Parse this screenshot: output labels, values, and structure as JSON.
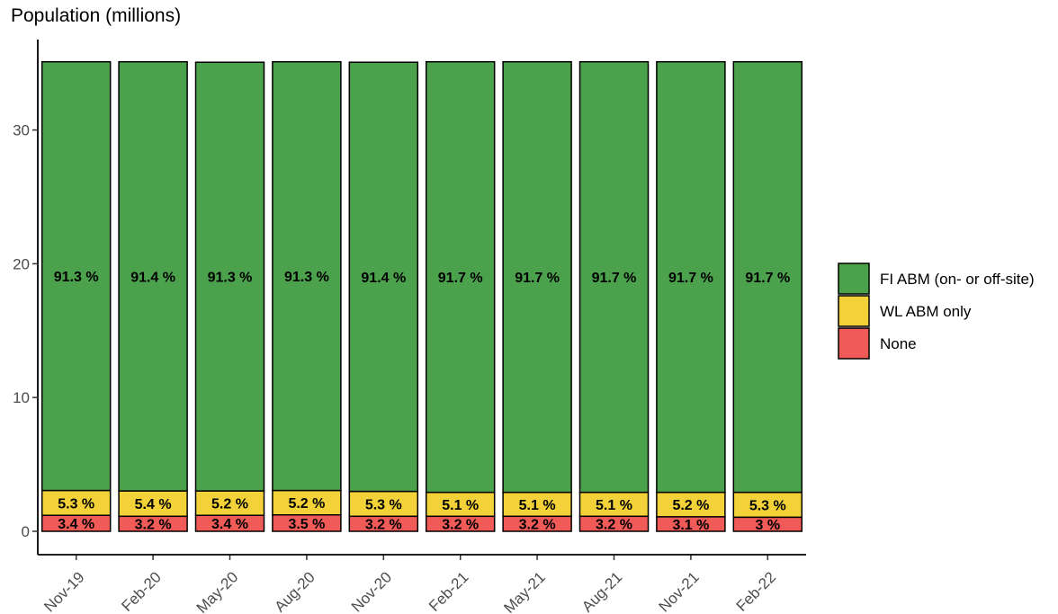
{
  "chart_data": {
    "type": "bar",
    "stacked": true,
    "title": "Population (millions)",
    "xlabel": "",
    "ylabel": "",
    "ylim": [
      0,
      35
    ],
    "yticks": [
      0,
      10,
      20,
      30
    ],
    "grid": false,
    "legend_position": "right",
    "categories": [
      "Nov-19",
      "Feb-20",
      "May-20",
      "Aug-20",
      "Nov-20",
      "Feb-21",
      "May-21",
      "Aug-21",
      "Nov-21",
      "Feb-22"
    ],
    "totals": [
      35.1,
      35.1,
      35.1,
      35.1,
      35.1,
      35.1,
      35.1,
      35.1,
      35.1,
      35.1
    ],
    "series": [
      {
        "name": "None",
        "color": "#f05a57",
        "percent": [
          3.4,
          3.2,
          3.4,
          3.5,
          3.2,
          3.2,
          3.2,
          3.2,
          3.1,
          3.0
        ],
        "labels": [
          "3.4 %",
          "3.2 %",
          "3.4 %",
          "3.5 %",
          "3.2 %",
          "3.2 %",
          "3.2 %",
          "3.2 %",
          "3.1 %",
          "3 %"
        ]
      },
      {
        "name": "WL ABM only",
        "color": "#f2d238",
        "percent": [
          5.3,
          5.4,
          5.2,
          5.2,
          5.3,
          5.1,
          5.1,
          5.1,
          5.2,
          5.3
        ],
        "labels": [
          "5.3 %",
          "5.4 %",
          "5.2 %",
          "5.2 %",
          "5.3 %",
          "5.1 %",
          "5.1 %",
          "5.1 %",
          "5.2 %",
          "5.3 %"
        ]
      },
      {
        "name": "FI ABM (on- or off-site)",
        "color": "#4ca24c",
        "percent": [
          91.3,
          91.4,
          91.3,
          91.3,
          91.4,
          91.7,
          91.7,
          91.7,
          91.7,
          91.7
        ],
        "labels": [
          "91.3 %",
          "91.4 %",
          "91.3 %",
          "91.3 %",
          "91.4 %",
          "91.7 %",
          "91.7 %",
          "91.7 %",
          "91.7 %",
          "91.7 %"
        ]
      }
    ],
    "legend_order": [
      "FI ABM (on- or off-site)",
      "WL ABM only",
      "None"
    ]
  }
}
